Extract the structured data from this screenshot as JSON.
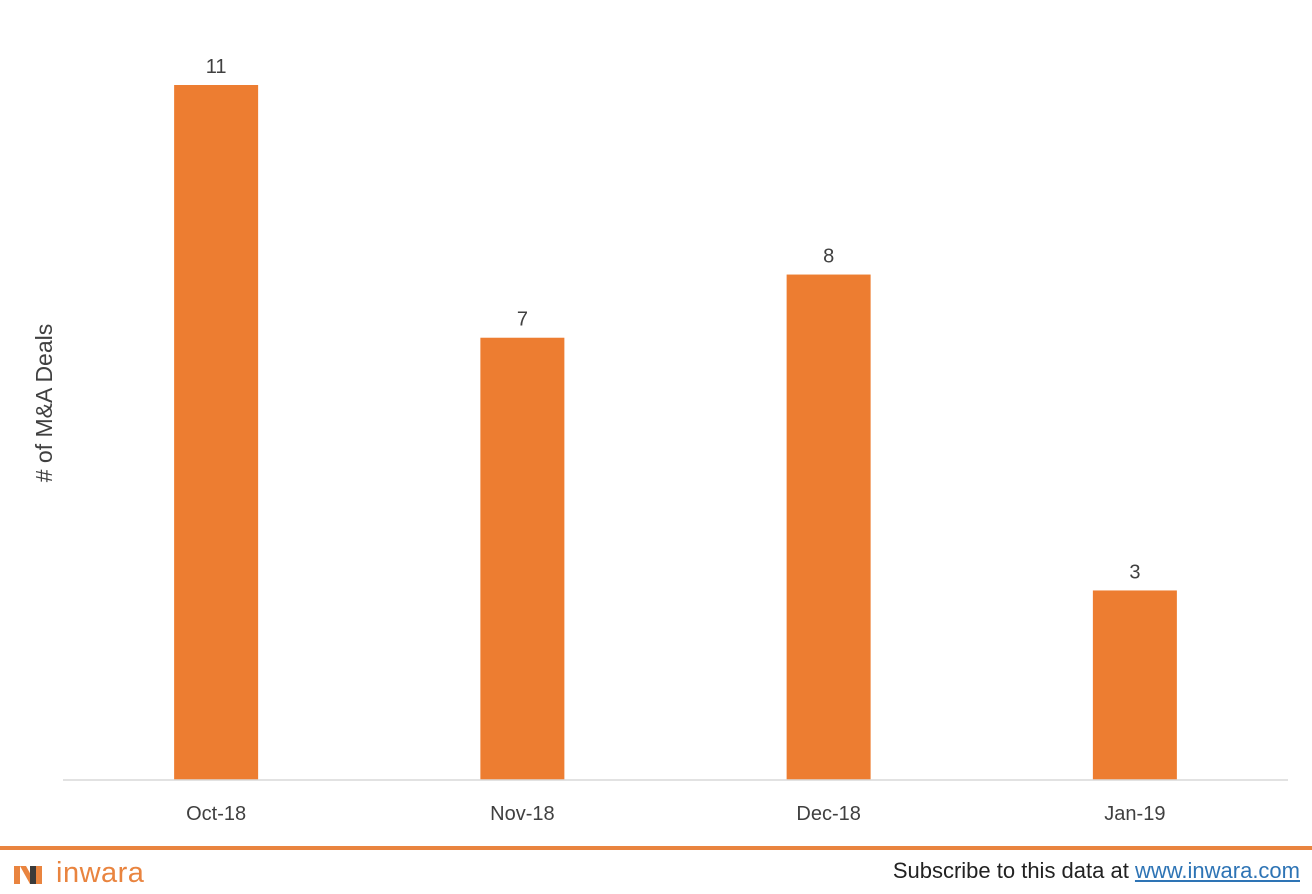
{
  "chart_data": {
    "type": "bar",
    "categories": [
      "Oct-18",
      "Nov-18",
      "Dec-18",
      "Jan-19"
    ],
    "values": [
      11,
      7,
      8,
      3
    ],
    "ylabel": "# of M&A Deals",
    "xlabel": "",
    "ylim": [
      0,
      11
    ],
    "grid": false,
    "data_labels": true,
    "colors": {
      "bar": "#ed7d31",
      "axis": "#d9d9d9",
      "text": "#404040"
    }
  },
  "footer": {
    "logo_text": "inwara",
    "subscribe_text": "Subscribe to this data at ",
    "subscribe_link": "www.inwara.com",
    "accent_color": "#e9843f"
  }
}
